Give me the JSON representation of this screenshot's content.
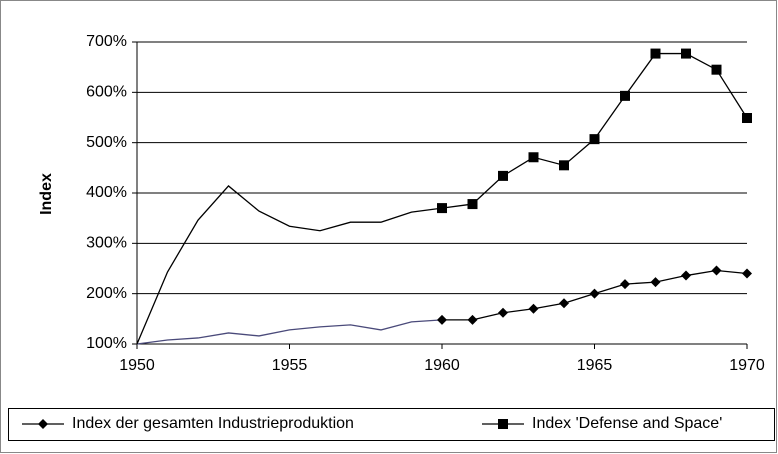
{
  "chart_data": {
    "type": "line",
    "y_label": "Index",
    "x": [
      1950,
      1951,
      1952,
      1953,
      1954,
      1955,
      1956,
      1957,
      1958,
      1959,
      1960,
      1961,
      1962,
      1963,
      1964,
      1965,
      1966,
      1967,
      1968,
      1969,
      1970
    ],
    "series": [
      {
        "name": "Index der gesamten Industrieproduktion",
        "color": "#000000",
        "early_color": "#4a4a7a",
        "marker": "diamond",
        "marker_from_x": 1960,
        "values": [
          100,
          108,
          112,
          122,
          116,
          128,
          134,
          138,
          128,
          144,
          148,
          148,
          162,
          170,
          181,
          200,
          219,
          223,
          236,
          246,
          240
        ]
      },
      {
        "name": "Index 'Defense and Space'",
        "color": "#000000",
        "early_color": "#000000",
        "marker": "square",
        "marker_from_x": 1960,
        "values": [
          100,
          243,
          346,
          414,
          364,
          334,
          325,
          342,
          342,
          362,
          370,
          378,
          434,
          471,
          455,
          507,
          593,
          677,
          677,
          645,
          549
        ]
      }
    ],
    "xlim": [
      1950,
      1970
    ],
    "xticks": [
      1950,
      1955,
      1960,
      1965,
      1970
    ],
    "ylim": [
      100,
      700
    ],
    "yticks": [
      {
        "value": 100,
        "label": "100%"
      },
      {
        "value": 200,
        "label": "200%"
      },
      {
        "value": 300,
        "label": "300%"
      },
      {
        "value": 400,
        "label": "400%"
      },
      {
        "value": 500,
        "label": "500%"
      },
      {
        "value": 600,
        "label": "600%"
      },
      {
        "value": 700,
        "label": "700%"
      }
    ],
    "grid": true,
    "legend": "bottom"
  }
}
